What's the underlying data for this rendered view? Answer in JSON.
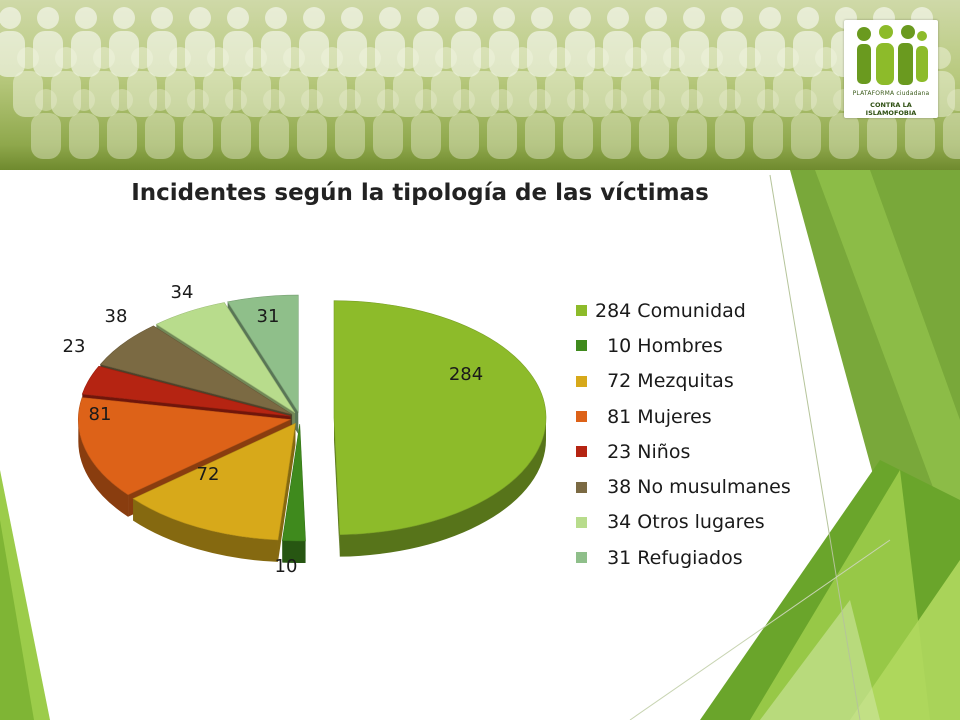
{
  "slide": {
    "title": "Incidentes según la tipología de las víctimas"
  },
  "logo": {
    "line1": "PLATAFORMA ciudadana",
    "line2": "CONTRA LA ISLAMOFOBIA",
    "colors": [
      "#6a9a1f",
      "#8dbb2a"
    ]
  },
  "theme": {
    "accent_dark": "#5e8c1e",
    "accent_light": "#a9d34a",
    "banner": "#8fa84c"
  },
  "chart_data": {
    "type": "pie",
    "title": "Incidentes según la tipología de las víctimas",
    "legend_position": "right",
    "exploded": true,
    "three_d": true,
    "categories": [
      "Comunidad",
      "Hombres",
      "Mezquitas",
      "Mujeres",
      "Niños",
      "No musulmanes",
      "Otros lugares",
      "Refugiados"
    ],
    "values": [
      284,
      10,
      72,
      81,
      23,
      38,
      34,
      31
    ],
    "legend_labels": [
      "284 Comunidad",
      "10 Hombres",
      "72 Mezquitas",
      "81 Mujeres",
      "23 Niños",
      "38 No musulmanes",
      "34 Otros lugares",
      "31 Refugiados"
    ],
    "data_labels": [
      "284",
      "10",
      "72",
      "81",
      "23",
      "38",
      "34",
      "31"
    ],
    "colors": [
      "#8dbb2a",
      "#3f8a1d",
      "#d7a91a",
      "#dd6218",
      "#b52412",
      "#7b6a43",
      "#b8dc8c",
      "#8fbf8a"
    ]
  }
}
